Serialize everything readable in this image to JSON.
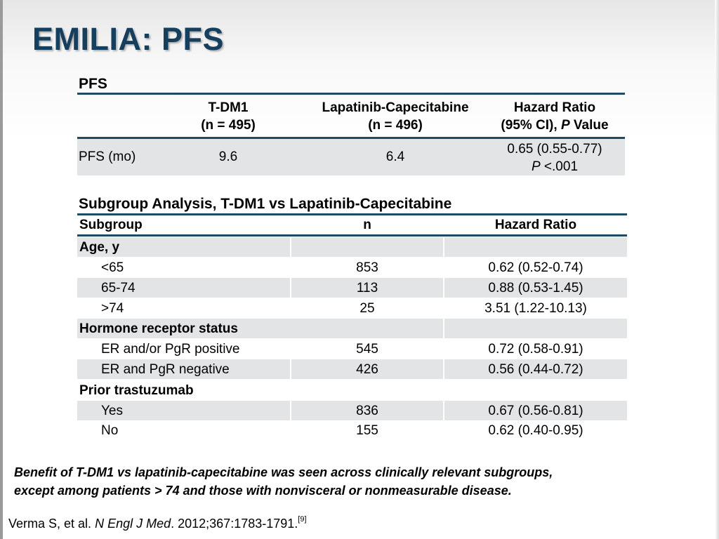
{
  "title": "EMILIA: PFS",
  "pfs_table": {
    "heading": "PFS",
    "columns": [
      {
        "line1": "T-DM1",
        "line2": "(n = 495)"
      },
      {
        "line1": "Lapatinib-Capecitabine",
        "line2": "(n = 496)"
      },
      {
        "line1": "Hazard Ratio",
        "line2_prefix": "(95% CI), ",
        "line2_italic": "P",
        "line2_suffix": " Value"
      }
    ],
    "row": {
      "label": "PFS (mo)",
      "tdm1": "9.6",
      "lapcap": "6.4",
      "hr_line1": "0.65 (0.55-0.77)",
      "hr_p_italic": "P",
      "hr_p_value": " <.001"
    }
  },
  "subgroup_table": {
    "heading": "Subgroup Analysis, T-DM1 vs Lapatinib-Capecitabine",
    "headers": {
      "subgroup": "Subgroup",
      "n": "n",
      "hr": "Hazard Ratio"
    },
    "rows": [
      {
        "label": "Age, y",
        "n": "",
        "hr": ""
      },
      {
        "label": "<65",
        "n": "853",
        "hr": "0.62 (0.52-0.74)"
      },
      {
        "label": "65-74",
        "n": "113",
        "hr": "0.88 (0.53-1.45)"
      },
      {
        "label": ">74",
        "n": "25",
        "hr": "3.51 (1.22-10.13)"
      },
      {
        "label": "Hormone receptor status",
        "n": "",
        "hr": ""
      },
      {
        "label": "ER and/or PgR positive",
        "n": "545",
        "hr": "0.72 (0.58-0.91)"
      },
      {
        "label": "ER and PgR negative",
        "n": "426",
        "hr": "0.56 (0.44-0.72)"
      },
      {
        "label": "Prior trastuzumab",
        "n": "",
        "hr": ""
      },
      {
        "label": "Yes",
        "n": "836",
        "hr": "0.67 (0.56-0.81)"
      },
      {
        "label": "No",
        "n": "155",
        "hr": "0.62 (0.40-0.95)"
      }
    ]
  },
  "conclusion": {
    "line1": "Benefit of T-DM1 vs lapatinib-capecitabine was seen across clinically relevant subgroups,",
    "line2": "except among patients > 74 and those with nonvisceral or nonmeasurable disease."
  },
  "citation": {
    "authors": "Verma S, et al. ",
    "journal": "N Engl J Med",
    "details": ". 2012;367:1783-1791.",
    "ref": "[9]"
  }
}
